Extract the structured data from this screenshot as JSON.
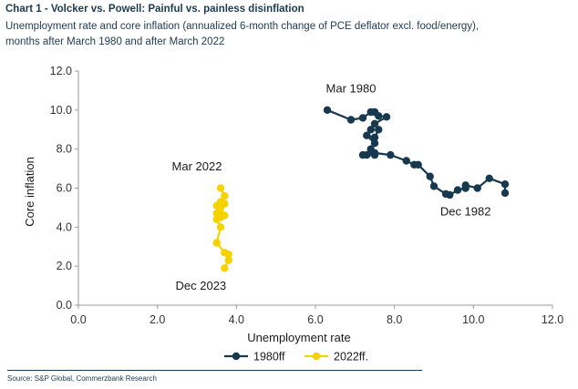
{
  "header": {
    "title": "Chart 1 - Volcker vs. Powell: Painful vs. painless disinflation",
    "subtitle": "Unemployment rate and core inflation (annualized 6-month change of PCE deflator excl. food/energy), months after March 1980 and after March 2022"
  },
  "footer": {
    "source": "Source: S&P Global, Commerzbank Research"
  },
  "colors": {
    "series_1980": "#16394f",
    "series_2022": "#f5d300",
    "axis": "#9a9a9a"
  },
  "chart_data": {
    "type": "line",
    "xlabel": "Unemployment rate",
    "ylabel": "Core inflation",
    "xlim": [
      0,
      12
    ],
    "ylim": [
      0,
      12
    ],
    "x_ticks": [
      "0.0",
      "2.0",
      "4.0",
      "6.0",
      "8.0",
      "10.0",
      "12.0"
    ],
    "y_ticks": [
      "0.0",
      "2.0",
      "4.0",
      "6.0",
      "8.0",
      "10.0",
      "12.0"
    ],
    "annotations": [
      {
        "text": "Mar 1980",
        "x": 6.9,
        "y": 10.9
      },
      {
        "text": "Dec 1982",
        "x": 9.8,
        "y": 4.6
      },
      {
        "text": "Mar 2022",
        "x": 3.0,
        "y": 6.9
      },
      {
        "text": "Dec 2023",
        "x": 3.1,
        "y": 0.8
      }
    ],
    "series": [
      {
        "name": "1980ff",
        "points": [
          [
            6.3,
            10.0
          ],
          [
            6.9,
            9.5
          ],
          [
            7.2,
            9.6
          ],
          [
            7.4,
            9.9
          ],
          [
            7.5,
            9.9
          ],
          [
            7.6,
            9.7
          ],
          [
            7.8,
            9.65
          ],
          [
            7.5,
            9.3
          ],
          [
            7.4,
            9.0
          ],
          [
            7.6,
            9.0
          ],
          [
            7.5,
            8.6
          ],
          [
            7.3,
            8.7
          ],
          [
            7.5,
            8.3
          ],
          [
            7.4,
            8.0
          ],
          [
            7.5,
            7.7
          ],
          [
            7.3,
            7.7
          ],
          [
            7.2,
            7.7
          ],
          [
            7.5,
            7.8
          ],
          [
            7.9,
            7.7
          ],
          [
            8.3,
            7.4
          ],
          [
            8.5,
            7.2
          ],
          [
            8.6,
            7.2
          ],
          [
            8.9,
            6.6
          ],
          [
            9.0,
            6.1
          ],
          [
            9.3,
            5.7
          ],
          [
            9.4,
            5.65
          ],
          [
            9.6,
            5.9
          ],
          [
            9.8,
            6.0
          ],
          [
            9.8,
            6.15
          ],
          [
            10.1,
            6.0
          ],
          [
            10.4,
            6.5
          ],
          [
            10.8,
            6.2
          ],
          [
            10.8,
            5.75
          ]
        ]
      },
      {
        "name": "2022ff.",
        "points": [
          [
            3.6,
            6.0
          ],
          [
            3.7,
            5.6
          ],
          [
            3.6,
            5.3
          ],
          [
            3.5,
            4.7
          ],
          [
            3.6,
            4.5
          ],
          [
            3.6,
            5.0
          ],
          [
            3.7,
            5.2
          ],
          [
            3.5,
            5.1
          ],
          [
            3.6,
            4.7
          ],
          [
            3.7,
            4.6
          ],
          [
            3.5,
            4.4
          ],
          [
            3.6,
            4.0
          ],
          [
            3.5,
            3.2
          ],
          [
            3.7,
            2.7
          ],
          [
            3.8,
            2.6
          ],
          [
            3.8,
            2.3
          ],
          [
            3.7,
            1.9
          ]
        ]
      }
    ],
    "legend": [
      {
        "label": "1980ff"
      },
      {
        "label": "2022ff."
      }
    ]
  }
}
